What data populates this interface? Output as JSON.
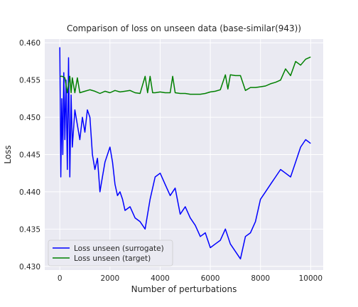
{
  "chart_data": {
    "type": "line",
    "title": "Comparison of loss on unseen data (base-similar(943))",
    "xlabel": "Number of perturbations",
    "ylabel": "Loss",
    "xlim": [
      -600,
      10500
    ],
    "ylim": [
      0.4295,
      0.4605
    ],
    "x_ticks": [
      0,
      2000,
      4000,
      6000,
      8000,
      10000
    ],
    "x_tick_labels": [
      "0",
      "2000",
      "4000",
      "6000",
      "8000",
      "10000"
    ],
    "y_ticks": [
      0.43,
      0.435,
      0.44,
      0.445,
      0.45,
      0.455,
      0.46
    ],
    "y_tick_labels": [
      "0.430",
      "0.435",
      "0.440",
      "0.445",
      "0.450",
      "0.455",
      "0.460"
    ],
    "grid": true,
    "legend_position": "lower-left",
    "background": "#eaeaf2",
    "series": [
      {
        "name": "Loss unseen (surrogate)",
        "color": "#0000ff",
        "x": [
          0,
          40,
          80,
          120,
          160,
          200,
          250,
          300,
          350,
          400,
          450,
          500,
          600,
          700,
          800,
          900,
          1000,
          1100,
          1200,
          1300,
          1400,
          1500,
          1600,
          1700,
          1800,
          1900,
          2000,
          2100,
          2200,
          2300,
          2400,
          2500,
          2600,
          2800,
          3000,
          3200,
          3400,
          3600,
          3800,
          4000,
          4200,
          4400,
          4600,
          4800,
          5000,
          5200,
          5400,
          5600,
          5800,
          6000,
          6200,
          6400,
          6600,
          6800,
          7000,
          7200,
          7400,
          7600,
          7800,
          8000,
          8200,
          8400,
          8600,
          8800,
          9000,
          9200,
          9400,
          9600,
          9800,
          10000
        ],
        "y": [
          0.4594,
          0.442,
          0.4525,
          0.445,
          0.456,
          0.447,
          0.455,
          0.443,
          0.458,
          0.442,
          0.453,
          0.446,
          0.451,
          0.449,
          0.447,
          0.45,
          0.448,
          0.451,
          0.45,
          0.445,
          0.443,
          0.4445,
          0.44,
          0.442,
          0.444,
          0.445,
          0.446,
          0.444,
          0.441,
          0.4395,
          0.44,
          0.439,
          0.4375,
          0.438,
          0.4365,
          0.436,
          0.435,
          0.439,
          0.442,
          0.4425,
          0.441,
          0.4395,
          0.4405,
          0.437,
          0.438,
          0.4365,
          0.4355,
          0.434,
          0.4345,
          0.4325,
          0.433,
          0.4335,
          0.435,
          0.433,
          0.432,
          0.431,
          0.434,
          0.4345,
          0.436,
          0.439,
          0.44,
          0.441,
          0.442,
          0.443,
          0.4425,
          0.442,
          0.444,
          0.446,
          0.447,
          0.4465
        ]
      },
      {
        "name": "Loss unseen (target)",
        "color": "#008000",
        "x": [
          0,
          100,
          200,
          300,
          400,
          450,
          500,
          600,
          700,
          800,
          1000,
          1200,
          1400,
          1600,
          1800,
          2000,
          2200,
          2400,
          2600,
          2800,
          3000,
          3200,
          3400,
          3500,
          3600,
          3700,
          3800,
          4000,
          4200,
          4400,
          4500,
          4600,
          4800,
          5000,
          5200,
          5400,
          5600,
          5800,
          6000,
          6200,
          6400,
          6600,
          6700,
          6800,
          7000,
          7200,
          7400,
          7600,
          7800,
          8000,
          8200,
          8400,
          8600,
          8800,
          9000,
          9200,
          9400,
          9600,
          9800,
          10000
        ],
        "y": [
          0.4555,
          0.4555,
          0.4553,
          0.4533,
          0.4555,
          0.4533,
          0.4553,
          0.4533,
          0.4553,
          0.4533,
          0.4535,
          0.4537,
          0.4535,
          0.4532,
          0.4535,
          0.4533,
          0.4536,
          0.4534,
          0.4535,
          0.4536,
          0.4533,
          0.4532,
          0.4555,
          0.4533,
          0.4555,
          0.4533,
          0.4533,
          0.4534,
          0.4533,
          0.4533,
          0.4555,
          0.4533,
          0.4532,
          0.4532,
          0.4531,
          0.4531,
          0.4531,
          0.4532,
          0.4534,
          0.4535,
          0.4537,
          0.4557,
          0.4538,
          0.4557,
          0.4556,
          0.4556,
          0.4536,
          0.454,
          0.454,
          0.4541,
          0.4542,
          0.4545,
          0.4547,
          0.455,
          0.4565,
          0.4556,
          0.4575,
          0.457,
          0.4578,
          0.4581
        ]
      }
    ]
  }
}
